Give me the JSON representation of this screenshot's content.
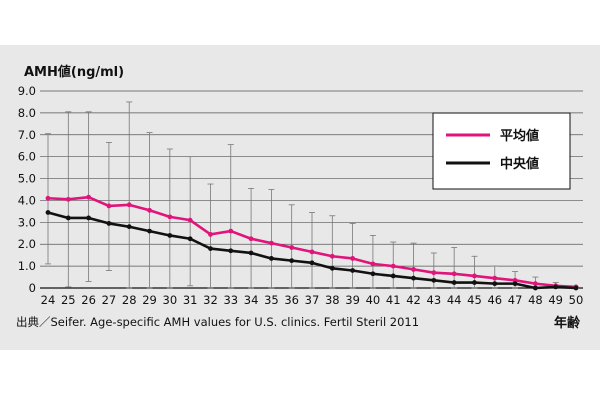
{
  "chart_data": {
    "type": "line",
    "ylabel": "AMH値(ng/ml)",
    "xlabel": "年齢",
    "source": "出典／Seifer. Age-specific AMH values for U.S. clinics. Fertil Steril 2011",
    "ylim": [
      0,
      9
    ],
    "yticks": [
      "0",
      "1.0",
      "2.0",
      "3.0",
      "4.0",
      "5.0",
      "6.0",
      "7.0",
      "8.0",
      "9.0"
    ],
    "categories": [
      "24",
      "25",
      "26",
      "27",
      "28",
      "29",
      "30",
      "31",
      "32",
      "33",
      "34",
      "35",
      "36",
      "37",
      "38",
      "39",
      "40",
      "41",
      "42",
      "43",
      "44",
      "45",
      "46",
      "47",
      "48",
      "49",
      "50"
    ],
    "series": [
      {
        "name": "平均値",
        "color": "#e0147a",
        "values": [
          4.1,
          4.05,
          4.15,
          3.75,
          3.8,
          3.55,
          3.25,
          3.1,
          2.45,
          2.6,
          2.25,
          2.05,
          1.85,
          1.65,
          1.45,
          1.35,
          1.1,
          1.0,
          0.85,
          0.7,
          0.65,
          0.55,
          0.45,
          0.35,
          0.2,
          0.1,
          0.05
        ],
        "error_top": [
          7.05,
          8.05,
          8.05,
          6.65,
          8.5,
          7.1,
          6.35,
          6.0,
          4.75,
          6.55,
          4.55,
          4.5,
          3.8,
          3.45,
          3.3,
          2.95,
          2.4,
          2.1,
          2.05,
          1.6,
          1.85,
          1.45,
          1.0,
          0.75,
          0.5,
          0.25,
          0.05
        ],
        "error_bottom": [
          1.1,
          0.05,
          0.3,
          0.8,
          0,
          0,
          0,
          0.1,
          0,
          0,
          0,
          0,
          0,
          0,
          0,
          0,
          0,
          0,
          0,
          0,
          0,
          0,
          0,
          0,
          0,
          0,
          0
        ]
      },
      {
        "name": "中央値",
        "color": "#111111",
        "values": [
          3.45,
          3.2,
          3.2,
          2.95,
          2.8,
          2.6,
          2.4,
          2.25,
          1.8,
          1.7,
          1.6,
          1.35,
          1.25,
          1.15,
          0.9,
          0.8,
          0.65,
          0.55,
          0.45,
          0.35,
          0.25,
          0.25,
          0.2,
          0.2,
          0.0,
          0.05,
          0.0
        ]
      }
    ],
    "legend_placement": "top-right",
    "grid": "horizontal"
  }
}
